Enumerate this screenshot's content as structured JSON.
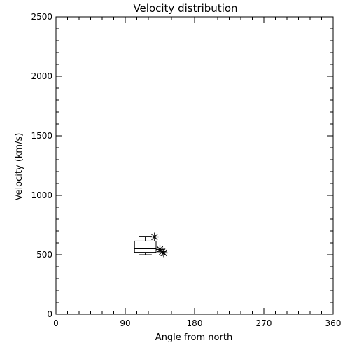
{
  "chart_data": {
    "type": "box",
    "title": "Velocity distribution",
    "xlabel": "Angle from north",
    "ylabel": "Velocity (km/s)",
    "xlim": [
      0,
      360
    ],
    "ylim": [
      0,
      2500
    ],
    "xticks": [
      0,
      90,
      180,
      270,
      360
    ],
    "yticks": [
      0,
      500,
      1000,
      1500,
      2000,
      2500
    ],
    "grid": false,
    "box": {
      "x_left": 102,
      "x_right": 130,
      "whisker_low": 500,
      "q1": 520,
      "median": 550,
      "q3": 615,
      "whisker_high": 655
    },
    "points": [
      {
        "x": 128,
        "y": 650
      },
      {
        "x": 135,
        "y": 545
      },
      {
        "x": 138,
        "y": 525
      },
      {
        "x": 140,
        "y": 515
      }
    ],
    "marker": "asterisk",
    "color": "#000000"
  }
}
